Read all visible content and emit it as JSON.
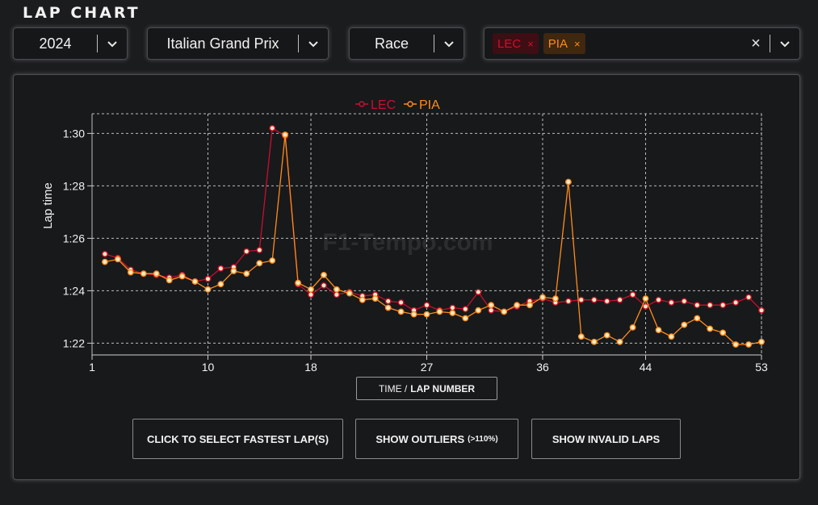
{
  "header": {
    "title": "LAP CHART"
  },
  "filters": {
    "year": "2024",
    "event": "Italian Grand Prix",
    "session": "Race",
    "drivers": [
      {
        "code": "LEC",
        "color": "#d0102a",
        "bg": "#4a0f16",
        "remove": "×"
      },
      {
        "code": "PIA",
        "color": "#ff8c1a",
        "bg": "#4a2a0f",
        "remove": "×"
      }
    ],
    "clear": "×"
  },
  "watermark": "F1-Tempo.com",
  "xaxis_button": {
    "prefix": "TIME /",
    "active": "LAP NUMBER"
  },
  "buttons": {
    "fastest": "CLICK TO SELECT FASTEST LAP(S)",
    "outliers": "SHOW OUTLIERS",
    "outliers_note": "(>110%)",
    "invalid": "SHOW INVALID LAPS"
  },
  "chart_data": {
    "type": "line",
    "title": "",
    "xlabel": "",
    "ylabel": "Lap time",
    "xlim": [
      1,
      53
    ],
    "ylim": [
      81.55,
      90.75
    ],
    "x_ticks": [
      1,
      10,
      18,
      27,
      36,
      44,
      53
    ],
    "y_ticks": [
      82,
      84,
      86,
      88,
      90
    ],
    "y_tick_labels": [
      "1:22",
      "1:24",
      "1:26",
      "1:28",
      "1:30"
    ],
    "grid": true,
    "legend": "top-center",
    "series": [
      {
        "name": "LEC",
        "color": "#c8102e",
        "x": [
          2,
          3,
          4,
          5,
          6,
          7,
          8,
          9,
          10,
          11,
          12,
          13,
          14,
          15,
          16,
          17,
          18,
          19,
          20,
          21,
          22,
          23,
          24,
          25,
          26,
          27,
          28,
          29,
          30,
          31,
          32,
          33,
          34,
          35,
          36,
          37,
          38,
          39,
          40,
          41,
          42,
          43,
          44,
          45,
          46,
          47,
          48,
          49,
          50,
          51,
          52,
          53
        ],
        "y": [
          85.4,
          85.25,
          84.8,
          84.65,
          84.6,
          84.5,
          84.6,
          84.35,
          84.45,
          84.85,
          84.9,
          85.5,
          85.55,
          90.2,
          89.9,
          84.25,
          83.85,
          84.2,
          83.85,
          83.95,
          83.8,
          83.85,
          83.6,
          83.55,
          83.25,
          83.45,
          83.25,
          83.35,
          83.3,
          83.95,
          83.25,
          83.2,
          83.4,
          83.6,
          83.7,
          83.55,
          83.6,
          83.65,
          83.65,
          83.6,
          83.65,
          83.85,
          83.4,
          83.65,
          83.55,
          83.6,
          83.45,
          83.45,
          83.45,
          83.55,
          83.75,
          83.25
        ]
      },
      {
        "name": "PIA",
        "color": "#ff8c1a",
        "x": [
          2,
          3,
          4,
          5,
          6,
          7,
          8,
          9,
          10,
          11,
          12,
          13,
          14,
          15,
          16,
          17,
          18,
          19,
          20,
          21,
          22,
          23,
          24,
          25,
          26,
          27,
          28,
          29,
          30,
          31,
          32,
          33,
          34,
          35,
          36,
          37,
          38,
          39,
          40,
          41,
          42,
          43,
          44,
          45,
          46,
          47,
          48,
          49,
          50,
          51,
          52,
          53
        ],
        "y": [
          85.1,
          85.2,
          84.7,
          84.65,
          84.65,
          84.4,
          84.55,
          84.35,
          84.05,
          84.25,
          84.75,
          84.65,
          85.05,
          85.15,
          89.95,
          84.3,
          84.05,
          84.6,
          84.05,
          83.9,
          83.65,
          83.7,
          83.35,
          83.2,
          83.1,
          83.1,
          83.2,
          83.15,
          82.95,
          83.25,
          83.45,
          83.2,
          83.45,
          83.45,
          83.75,
          83.7,
          88.15,
          82.25,
          82.05,
          82.3,
          82.05,
          82.6,
          83.7,
          82.5,
          82.25,
          82.7,
          82.95,
          82.55,
          82.4,
          81.95,
          81.95,
          82.05
        ]
      }
    ]
  }
}
